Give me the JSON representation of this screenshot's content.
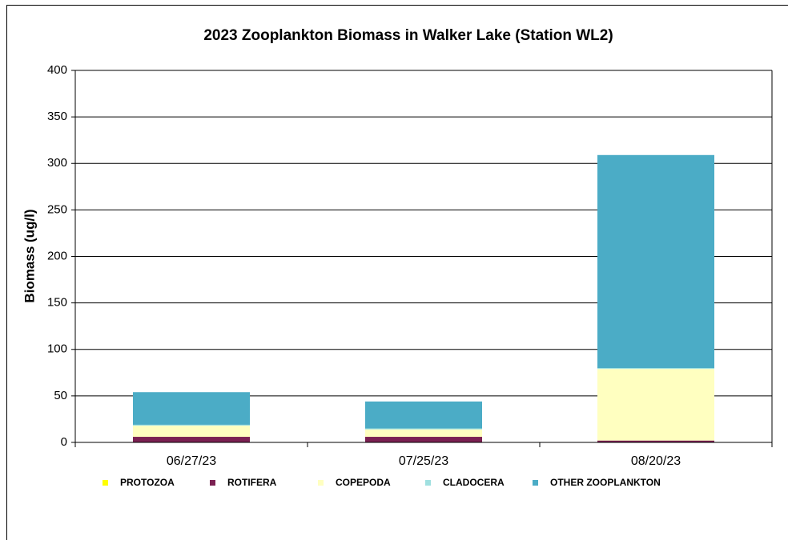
{
  "chart_data": {
    "type": "bar",
    "stacked": true,
    "title": "2023  Zooplankton Biomass in Walker Lake (Station WL2)",
    "y_label": "Biomass (ug/l)",
    "categories": [
      "06/27/23",
      "07/25/23",
      "08/20/23"
    ],
    "series": [
      {
        "name": "PROTOZOA",
        "color": "#ffff00",
        "values": [
          0,
          0,
          0
        ]
      },
      {
        "name": "ROTIFERA",
        "color": "#7b2152",
        "values": [
          6,
          6,
          2
        ]
      },
      {
        "name": "COPEPODA",
        "color": "#ffffc0",
        "values": [
          12,
          8,
          77
        ]
      },
      {
        "name": "CLADOCERA",
        "color": "#a0e0e0",
        "values": [
          1,
          1,
          1
        ]
      },
      {
        "name": "OTHER ZOOPLANKTON",
        "color": "#4bacc6",
        "values": [
          35,
          29,
          229
        ]
      }
    ],
    "ylim": [
      0,
      400
    ],
    "yticks": [
      0,
      50,
      100,
      150,
      200,
      250,
      300,
      350,
      400
    ],
    "grid": true,
    "legend": "bottom"
  }
}
